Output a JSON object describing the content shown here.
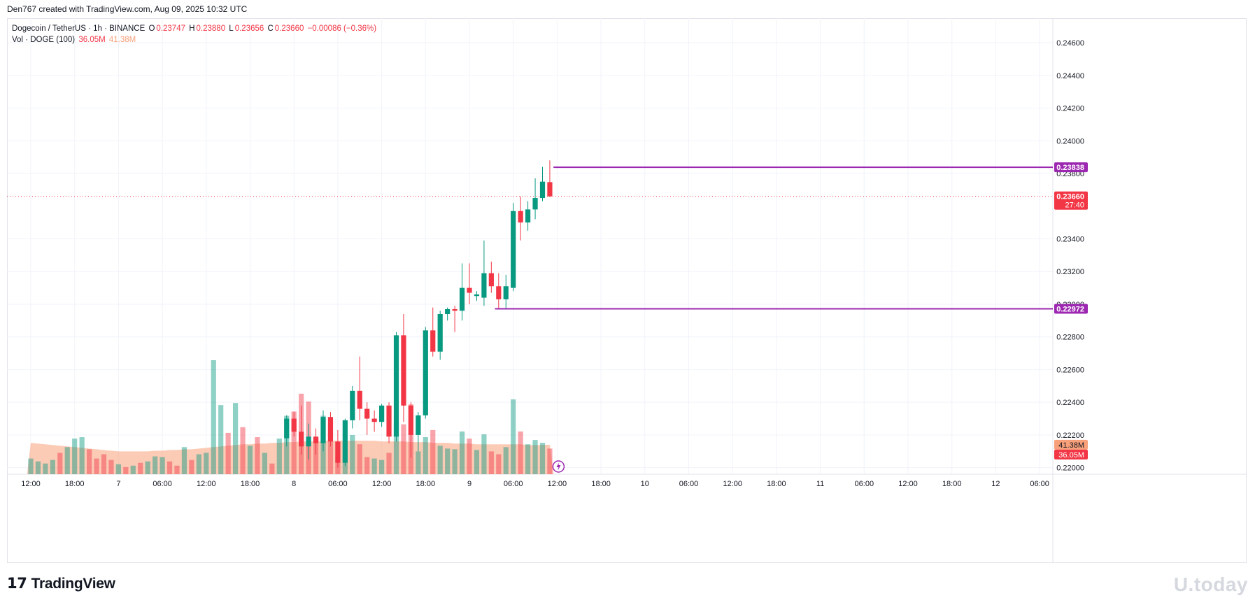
{
  "header": {
    "created_by": "Den767 created with TradingView.com, Aug 09, 2025 10:32 UTC"
  },
  "legend": {
    "symbol": "Dogecoin / TetherUS · 1h · BINANCE",
    "open_label": "O",
    "open": "0.23747",
    "high_label": "H",
    "high": "0.23880",
    "low_label": "L",
    "low": "0.23656",
    "close_label": "C",
    "close": "0.23660",
    "change": "−0.00086 (−0.36%)",
    "vol_label": "Vol · DOGE (100)",
    "vol_value": "36.05M",
    "vol_ma": "41.38M"
  },
  "footer": {
    "logo_text": "TradingView",
    "watermark": "U.today"
  },
  "colors": {
    "up": "#089981",
    "down": "#f23645",
    "level_line": "#9c27b0",
    "current_price_line": "#f23645",
    "vol_ma_area": "#f7a07a"
  },
  "chart_data": {
    "type": "candlestick",
    "interval": "1h",
    "y_axis": {
      "ylim": [
        0.2196,
        0.2475
      ],
      "ticks": [
        "0.24600",
        "0.24400",
        "0.24200",
        "0.24000",
        "0.23800",
        "0.23400",
        "0.23200",
        "0.23000",
        "0.22800",
        "0.22600",
        "0.22400",
        "0.22200",
        "0.22000"
      ]
    },
    "x_axis": {
      "ticks": [
        {
          "label": "12:00",
          "bar": 0
        },
        {
          "label": "18:00",
          "bar": 6
        },
        {
          "label": "7",
          "bar": 12
        },
        {
          "label": "06:00",
          "bar": 18
        },
        {
          "label": "12:00",
          "bar": 24
        },
        {
          "label": "18:00",
          "bar": 30
        },
        {
          "label": "8",
          "bar": 36
        },
        {
          "label": "06:00",
          "bar": 42
        },
        {
          "label": "12:00",
          "bar": 48
        },
        {
          "label": "18:00",
          "bar": 54
        },
        {
          "label": "9",
          "bar": 60
        },
        {
          "label": "06:00",
          "bar": 66
        },
        {
          "label": "12:00",
          "bar": 72
        },
        {
          "label": "18:00",
          "bar": 78
        },
        {
          "label": "10",
          "bar": 84
        },
        {
          "label": "06:00",
          "bar": 90
        },
        {
          "label": "12:00",
          "bar": 96
        },
        {
          "label": "18:00",
          "bar": 102
        },
        {
          "label": "11",
          "bar": 108
        },
        {
          "label": "06:00",
          "bar": 114
        },
        {
          "label": "12:00",
          "bar": 120
        },
        {
          "label": "18:00",
          "bar": 126
        },
        {
          "label": "12",
          "bar": 132
        },
        {
          "label": "06:00",
          "bar": 138
        }
      ],
      "bars_total": 142
    },
    "price_labels": [
      {
        "value": 0.23838,
        "text": "0.23838",
        "kind": "level"
      },
      {
        "value": 0.22972,
        "text": "0.22972",
        "kind": "level"
      },
      {
        "value": 0.2366,
        "text": "0.23660",
        "sub": "27:40",
        "kind": "current"
      }
    ],
    "levels": [
      {
        "value": 0.23838,
        "from_bar": 72
      },
      {
        "value": 0.22972,
        "from_bar": 64
      }
    ],
    "candles": [
      {
        "bar": 35,
        "o": 0.2218,
        "h": 0.2232,
        "l": 0.2213,
        "c": 0.223
      },
      {
        "bar": 36,
        "o": 0.223,
        "h": 0.2234,
        "l": 0.2219,
        "c": 0.2222
      },
      {
        "bar": 37,
        "o": 0.2222,
        "h": 0.2238,
        "l": 0.2208,
        "c": 0.2213
      },
      {
        "bar": 38,
        "o": 0.2213,
        "h": 0.2227,
        "l": 0.2205,
        "c": 0.2219
      },
      {
        "bar": 39,
        "o": 0.2219,
        "h": 0.2224,
        "l": 0.2208,
        "c": 0.2215
      },
      {
        "bar": 40,
        "o": 0.2215,
        "h": 0.2235,
        "l": 0.221,
        "c": 0.2231
      },
      {
        "bar": 41,
        "o": 0.2231,
        "h": 0.2234,
        "l": 0.2213,
        "c": 0.2216
      },
      {
        "bar": 42,
        "o": 0.2216,
        "h": 0.2223,
        "l": 0.22,
        "c": 0.2203
      },
      {
        "bar": 43,
        "o": 0.2203,
        "h": 0.223,
        "l": 0.2201,
        "c": 0.2229
      },
      {
        "bar": 44,
        "o": 0.2229,
        "h": 0.225,
        "l": 0.2224,
        "c": 0.2247
      },
      {
        "bar": 45,
        "o": 0.2247,
        "h": 0.2268,
        "l": 0.2229,
        "c": 0.2236
      },
      {
        "bar": 46,
        "o": 0.2236,
        "h": 0.224,
        "l": 0.222,
        "c": 0.223
      },
      {
        "bar": 47,
        "o": 0.223,
        "h": 0.2235,
        "l": 0.2222,
        "c": 0.2228
      },
      {
        "bar": 48,
        "o": 0.2228,
        "h": 0.2239,
        "l": 0.2225,
        "c": 0.2238
      },
      {
        "bar": 49,
        "o": 0.2238,
        "h": 0.224,
        "l": 0.2215,
        "c": 0.2219
      },
      {
        "bar": 50,
        "o": 0.2219,
        "h": 0.2283,
        "l": 0.2216,
        "c": 0.2281
      },
      {
        "bar": 51,
        "o": 0.2281,
        "h": 0.2294,
        "l": 0.2228,
        "c": 0.2238
      },
      {
        "bar": 52,
        "o": 0.2238,
        "h": 0.224,
        "l": 0.2206,
        "c": 0.222
      },
      {
        "bar": 53,
        "o": 0.222,
        "h": 0.2234,
        "l": 0.221,
        "c": 0.2232
      },
      {
        "bar": 54,
        "o": 0.2232,
        "h": 0.2286,
        "l": 0.223,
        "c": 0.2284
      },
      {
        "bar": 55,
        "o": 0.2284,
        "h": 0.2298,
        "l": 0.2268,
        "c": 0.2271
      },
      {
        "bar": 56,
        "o": 0.2271,
        "h": 0.2296,
        "l": 0.2266,
        "c": 0.2294
      },
      {
        "bar": 57,
        "o": 0.2294,
        "h": 0.2298,
        "l": 0.229,
        "c": 0.2297
      },
      {
        "bar": 58,
        "o": 0.2297,
        "h": 0.2299,
        "l": 0.2283,
        "c": 0.2296
      },
      {
        "bar": 59,
        "o": 0.2296,
        "h": 0.2325,
        "l": 0.229,
        "c": 0.231
      },
      {
        "bar": 60,
        "o": 0.231,
        "h": 0.2325,
        "l": 0.23,
        "c": 0.2307
      },
      {
        "bar": 61,
        "o": 0.2305,
        "h": 0.2308,
        "l": 0.2302,
        "c": 0.2306
      },
      {
        "bar": 62,
        "o": 0.2304,
        "h": 0.2339,
        "l": 0.2299,
        "c": 0.2319
      },
      {
        "bar": 63,
        "o": 0.2319,
        "h": 0.2326,
        "l": 0.2307,
        "c": 0.2311
      },
      {
        "bar": 64,
        "o": 0.2311,
        "h": 0.2319,
        "l": 0.2297,
        "c": 0.2303
      },
      {
        "bar": 65,
        "o": 0.2303,
        "h": 0.2318,
        "l": 0.2297,
        "c": 0.2311
      },
      {
        "bar": 66,
        "o": 0.231,
        "h": 0.2362,
        "l": 0.2308,
        "c": 0.2357
      },
      {
        "bar": 67,
        "o": 0.2357,
        "h": 0.2366,
        "l": 0.2339,
        "c": 0.235
      },
      {
        "bar": 68,
        "o": 0.235,
        "h": 0.2363,
        "l": 0.2345,
        "c": 0.2358
      },
      {
        "bar": 69,
        "o": 0.2358,
        "h": 0.2377,
        "l": 0.2352,
        "c": 0.2365
      },
      {
        "bar": 70,
        "o": 0.2365,
        "h": 0.2384,
        "l": 0.2363,
        "c": 0.2375
      },
      {
        "bar": 71,
        "o": 0.23747,
        "h": 0.2388,
        "l": 0.23656,
        "c": 0.2366
      }
    ],
    "volume": {
      "max_axis_M": 160,
      "bars": [
        {
          "bar": 0,
          "v": 22,
          "up": true
        },
        {
          "bar": 1,
          "v": 18,
          "up": true
        },
        {
          "bar": 2,
          "v": 15,
          "up": true
        },
        {
          "bar": 3,
          "v": 20,
          "up": true
        },
        {
          "bar": 4,
          "v": 30,
          "up": false
        },
        {
          "bar": 5,
          "v": 38,
          "up": true
        },
        {
          "bar": 6,
          "v": 50,
          "up": true
        },
        {
          "bar": 7,
          "v": 52,
          "up": true
        },
        {
          "bar": 8,
          "v": 35,
          "up": false
        },
        {
          "bar": 9,
          "v": 22,
          "up": false
        },
        {
          "bar": 10,
          "v": 28,
          "up": false
        },
        {
          "bar": 11,
          "v": 20,
          "up": false
        },
        {
          "bar": 12,
          "v": 14,
          "up": true
        },
        {
          "bar": 13,
          "v": 10,
          "up": false
        },
        {
          "bar": 14,
          "v": 12,
          "up": true
        },
        {
          "bar": 15,
          "v": 16,
          "up": false
        },
        {
          "bar": 16,
          "v": 18,
          "up": true
        },
        {
          "bar": 17,
          "v": 25,
          "up": true
        },
        {
          "bar": 18,
          "v": 24,
          "up": true
        },
        {
          "bar": 19,
          "v": 18,
          "up": false
        },
        {
          "bar": 20,
          "v": 12,
          "up": false
        },
        {
          "bar": 21,
          "v": 38,
          "up": true
        },
        {
          "bar": 22,
          "v": 20,
          "up": false
        },
        {
          "bar": 23,
          "v": 28,
          "up": true
        },
        {
          "bar": 24,
          "v": 30,
          "up": true
        },
        {
          "bar": 25,
          "v": 160,
          "up": true
        },
        {
          "bar": 26,
          "v": 97,
          "up": true
        },
        {
          "bar": 27,
          "v": 58,
          "up": false
        },
        {
          "bar": 28,
          "v": 100,
          "up": true
        },
        {
          "bar": 29,
          "v": 66,
          "up": false
        },
        {
          "bar": 30,
          "v": 40,
          "up": true
        },
        {
          "bar": 31,
          "v": 52,
          "up": false
        },
        {
          "bar": 32,
          "v": 30,
          "up": true
        },
        {
          "bar": 33,
          "v": 15,
          "up": false
        },
        {
          "bar": 34,
          "v": 50,
          "up": true
        },
        {
          "bar": 35,
          "v": 82,
          "up": true
        },
        {
          "bar": 36,
          "v": 88,
          "up": false
        },
        {
          "bar": 37,
          "v": 113,
          "up": false
        },
        {
          "bar": 38,
          "v": 102,
          "up": false
        },
        {
          "bar": 39,
          "v": 50,
          "up": false
        },
        {
          "bar": 40,
          "v": 82,
          "up": true
        },
        {
          "bar": 41,
          "v": 70,
          "up": false
        },
        {
          "bar": 42,
          "v": 26,
          "up": false
        },
        {
          "bar": 43,
          "v": 45,
          "up": true
        },
        {
          "bar": 44,
          "v": 55,
          "up": true
        },
        {
          "bar": 45,
          "v": 42,
          "up": false
        },
        {
          "bar": 46,
          "v": 24,
          "up": false
        },
        {
          "bar": 47,
          "v": 22,
          "up": true
        },
        {
          "bar": 48,
          "v": 20,
          "up": true
        },
        {
          "bar": 49,
          "v": 30,
          "up": false
        },
        {
          "bar": 50,
          "v": 74,
          "up": true
        },
        {
          "bar": 51,
          "v": 70,
          "up": false
        },
        {
          "bar": 52,
          "v": 98,
          "up": false
        },
        {
          "bar": 53,
          "v": 32,
          "up": true
        },
        {
          "bar": 54,
          "v": 52,
          "up": true
        },
        {
          "bar": 55,
          "v": 62,
          "up": false
        },
        {
          "bar": 56,
          "v": 40,
          "up": true
        },
        {
          "bar": 57,
          "v": 36,
          "up": true
        },
        {
          "bar": 58,
          "v": 35,
          "up": true
        },
        {
          "bar": 59,
          "v": 60,
          "up": true
        },
        {
          "bar": 60,
          "v": 50,
          "up": false
        },
        {
          "bar": 61,
          "v": 34,
          "up": true
        },
        {
          "bar": 62,
          "v": 56,
          "up": true
        },
        {
          "bar": 63,
          "v": 32,
          "up": false
        },
        {
          "bar": 64,
          "v": 28,
          "up": false
        },
        {
          "bar": 65,
          "v": 38,
          "up": true
        },
        {
          "bar": 66,
          "v": 105,
          "up": true
        },
        {
          "bar": 67,
          "v": 60,
          "up": false
        },
        {
          "bar": 68,
          "v": 42,
          "up": true
        },
        {
          "bar": 69,
          "v": 48,
          "up": true
        },
        {
          "bar": 70,
          "v": 44,
          "up": true
        },
        {
          "bar": 71,
          "v": 36,
          "up": false
        }
      ],
      "ma": [
        44,
        43,
        42,
        41,
        40,
        39,
        38,
        37,
        36,
        35,
        34,
        33,
        32,
        32,
        32,
        32,
        32,
        33,
        33,
        34,
        34,
        35,
        35,
        36,
        37,
        38,
        39,
        40,
        41,
        42,
        42,
        43,
        43,
        44,
        44,
        45,
        45,
        46,
        46,
        46,
        47,
        47,
        47,
        47,
        47,
        47,
        47,
        47,
        46,
        46,
        46,
        46,
        45,
        45,
        45,
        44,
        44,
        44,
        43,
        43,
        43,
        42,
        42,
        42,
        42,
        42,
        42,
        42,
        41,
        41,
        41,
        41.38
      ],
      "labels": [
        {
          "text": "41.38M",
          "kind": "ma"
        },
        {
          "text": "36.05M",
          "kind": "vol"
        }
      ]
    }
  }
}
